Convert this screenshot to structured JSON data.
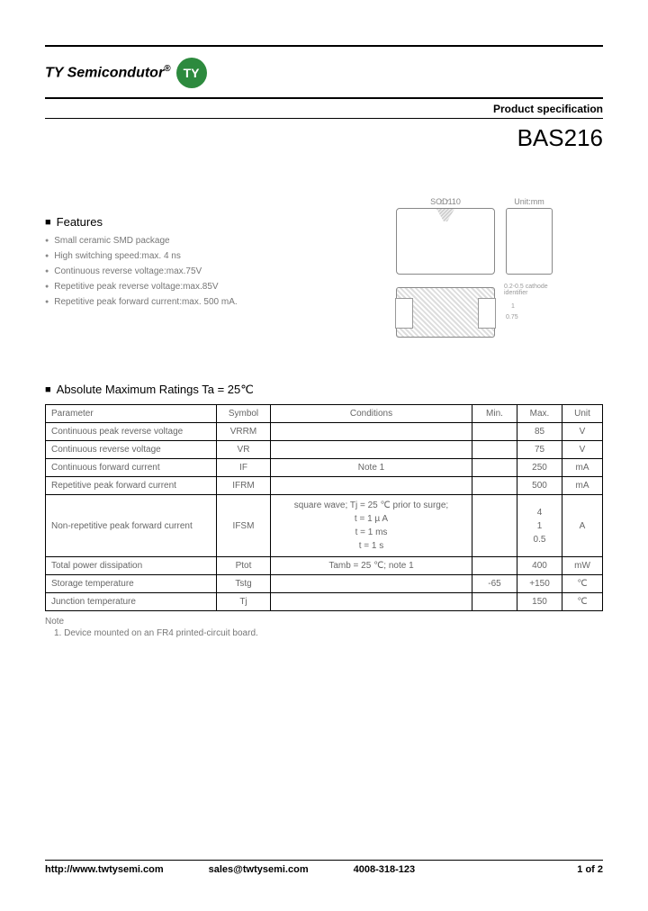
{
  "header": {
    "company": "TY Semicondutor",
    "logo_text": "TY",
    "logo_bg": "#2d8a3e",
    "logo_fg": "#ffffff",
    "spec_label": "Product specification",
    "part_number": "BAS216"
  },
  "features": {
    "heading": "Features",
    "items": [
      "Small ceramic SMD package",
      "High switching speed:max. 4 ns",
      "Continuous reverse voltage:max.75V",
      "Repetitive peak reverse voltage:max.85V",
      "Repetitive peak forward current:max. 500 mA."
    ]
  },
  "package": {
    "label_main": "SOD110",
    "label_side": "Unit:mm",
    "dim_top": "0.7",
    "cathode_note": "0.2-0.5 cathode identifier",
    "dim_right_1": "1",
    "dim_right_2": "0.75"
  },
  "ratings": {
    "heading": "Absolute Maximum Ratings Ta = 25℃",
    "columns": [
      "Parameter",
      "Symbol",
      "Conditions",
      "Min.",
      "Max.",
      "Unit"
    ],
    "rows": [
      {
        "param": "Continuous peak reverse voltage",
        "sym": "VRRM",
        "cond": "",
        "min": "",
        "max": "85",
        "unit": "V"
      },
      {
        "param": "Continuous reverse voltage",
        "sym": "VR",
        "cond": "",
        "min": "",
        "max": "75",
        "unit": "V"
      },
      {
        "param": "Continuous forward current",
        "sym": "IF",
        "cond": "Note 1",
        "min": "",
        "max": "250",
        "unit": "mA"
      },
      {
        "param": "Repetitive peak forward current",
        "sym": "IFRM",
        "cond": "",
        "min": "",
        "max": "500",
        "unit": "mA"
      },
      {
        "param": "Non-repetitive peak forward current",
        "sym": "IFSM",
        "cond": "square wave; Tj = 25 ℃ prior to surge;\nt = 1 µ A\nt = 1 ms\nt = 1 s",
        "min": "",
        "max": "4\n1\n0.5",
        "unit": "A"
      },
      {
        "param": "Total power dissipation",
        "sym": "Ptot",
        "cond": "Tamb = 25 ℃; note 1",
        "min": "",
        "max": "400",
        "unit": "mW"
      },
      {
        "param": "Storage temperature",
        "sym": "Tstg",
        "cond": "",
        "min": "-65",
        "max": "+150",
        "unit": "℃"
      },
      {
        "param": "Junction temperature",
        "sym": "Tj",
        "cond": "",
        "min": "",
        "max": "150",
        "unit": "℃"
      }
    ],
    "note_head": "Note",
    "note_1": "1. Device mounted on an FR4 printed-circuit board."
  },
  "footer": {
    "url": "http://www.twtysemi.com",
    "email": "sales@twtysemi.com",
    "phone": "4008-318-123",
    "page": "1 of 2"
  }
}
